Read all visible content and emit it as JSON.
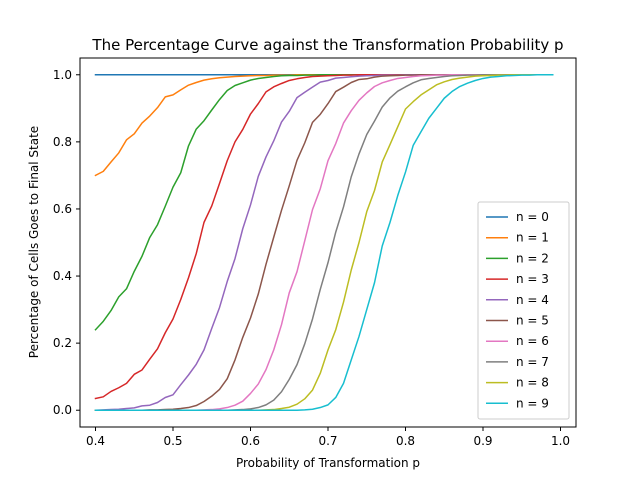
{
  "chart_data": {
    "type": "line",
    "title": "The Percentage Curve against the Transformation Probability p",
    "xlabel": "Probability of Transformation p",
    "ylabel": "Percentage of Cells Goes to Final State",
    "xlim": [
      0.38,
      1.02
    ],
    "ylim": [
      -0.05,
      1.05
    ],
    "xticks": [
      0.4,
      0.5,
      0.6,
      0.7,
      0.8,
      0.9,
      1.0
    ],
    "xtick_labels": [
      "0.4",
      "0.5",
      "0.6",
      "0.7",
      "0.8",
      "0.9",
      "1.0"
    ],
    "yticks": [
      0.0,
      0.2,
      0.4,
      0.6,
      0.8,
      1.0
    ],
    "ytick_labels": [
      "0.0",
      "0.2",
      "0.4",
      "0.6",
      "0.8",
      "1.0"
    ],
    "grid": false,
    "legend_position": "lower right",
    "x": [
      0.4,
      0.41,
      0.42,
      0.43,
      0.44,
      0.45,
      0.46,
      0.47,
      0.48,
      0.49,
      0.5,
      0.51,
      0.52,
      0.53,
      0.54,
      0.55,
      0.56,
      0.57,
      0.58,
      0.59,
      0.6,
      0.61,
      0.62,
      0.63,
      0.64,
      0.65,
      0.66,
      0.67,
      0.68,
      0.69,
      0.7,
      0.71,
      0.72,
      0.73,
      0.74,
      0.75,
      0.76,
      0.77,
      0.78,
      0.79,
      0.8,
      0.81,
      0.82,
      0.83,
      0.84,
      0.85,
      0.86,
      0.87,
      0.88,
      0.89,
      0.9,
      0.91,
      0.92,
      0.93,
      0.94,
      0.95,
      0.96,
      0.97,
      0.98,
      0.99
    ],
    "series": [
      {
        "name": "n = 0",
        "color": "#1f77b4",
        "values": [
          1.0,
          1.0,
          1.0,
          1.0,
          1.0,
          1.0,
          1.0,
          1.0,
          1.0,
          1.0,
          1.0,
          1.0,
          1.0,
          1.0,
          1.0,
          1.0,
          1.0,
          1.0,
          1.0,
          1.0,
          1.0,
          1.0,
          1.0,
          1.0,
          1.0,
          1.0,
          1.0,
          1.0,
          1.0,
          1.0,
          1.0,
          1.0,
          1.0,
          1.0,
          1.0,
          1.0,
          1.0,
          1.0,
          1.0,
          1.0,
          1.0,
          1.0,
          1.0,
          1.0,
          1.0,
          1.0,
          1.0,
          1.0,
          1.0,
          1.0,
          1.0,
          1.0,
          1.0,
          1.0,
          1.0,
          1.0,
          1.0,
          1.0,
          1.0,
          1.0
        ]
      },
      {
        "name": "n = 1",
        "color": "#ff7f0e",
        "values": [
          0.7,
          0.712,
          0.74,
          0.767,
          0.806,
          0.824,
          0.856,
          0.877,
          0.902,
          0.934,
          0.94,
          0.955,
          0.969,
          0.977,
          0.984,
          0.988,
          0.991,
          0.993,
          0.995,
          0.996,
          0.997,
          0.998,
          0.998,
          0.999,
          0.999,
          0.999,
          1.0,
          1.0,
          1.0,
          1.0,
          1.0,
          1.0,
          1.0,
          1.0,
          1.0,
          1.0,
          1.0,
          1.0,
          1.0,
          1.0,
          1.0,
          1.0,
          1.0,
          1.0,
          1.0,
          1.0,
          1.0,
          1.0,
          1.0,
          1.0,
          1.0,
          1.0,
          1.0,
          1.0,
          1.0,
          1.0,
          1.0,
          1.0,
          1.0,
          1.0
        ]
      },
      {
        "name": "n = 2",
        "color": "#2ca02c",
        "values": [
          0.24,
          0.265,
          0.297,
          0.338,
          0.362,
          0.414,
          0.459,
          0.515,
          0.553,
          0.608,
          0.665,
          0.708,
          0.788,
          0.838,
          0.863,
          0.895,
          0.926,
          0.953,
          0.968,
          0.976,
          0.984,
          0.989,
          0.992,
          0.995,
          0.997,
          0.998,
          0.998,
          0.999,
          0.999,
          1.0,
          1.0,
          1.0,
          1.0,
          1.0,
          1.0,
          1.0,
          1.0,
          1.0,
          1.0,
          1.0,
          1.0,
          1.0,
          1.0,
          1.0,
          1.0,
          1.0,
          1.0,
          1.0,
          1.0,
          1.0,
          1.0,
          1.0,
          1.0,
          1.0,
          1.0,
          1.0,
          1.0,
          1.0,
          1.0,
          1.0
        ]
      },
      {
        "name": "n = 3",
        "color": "#d62728",
        "values": [
          0.035,
          0.04,
          0.056,
          0.067,
          0.08,
          0.107,
          0.12,
          0.152,
          0.183,
          0.231,
          0.272,
          0.33,
          0.395,
          0.467,
          0.56,
          0.609,
          0.676,
          0.744,
          0.8,
          0.837,
          0.883,
          0.914,
          0.949,
          0.964,
          0.974,
          0.983,
          0.988,
          0.992,
          0.995,
          0.996,
          0.997,
          0.998,
          0.999,
          0.999,
          1.0,
          1.0,
          1.0,
          1.0,
          1.0,
          1.0,
          1.0,
          1.0,
          1.0,
          1.0,
          1.0,
          1.0,
          1.0,
          1.0,
          1.0,
          1.0,
          1.0,
          1.0,
          1.0,
          1.0,
          1.0,
          1.0,
          1.0,
          1.0,
          1.0,
          1.0
        ]
      },
      {
        "name": "n = 4",
        "color": "#9467bd",
        "values": [
          0.0,
          0.001,
          0.002,
          0.003,
          0.005,
          0.007,
          0.013,
          0.015,
          0.023,
          0.038,
          0.046,
          0.076,
          0.105,
          0.137,
          0.18,
          0.244,
          0.306,
          0.384,
          0.452,
          0.541,
          0.612,
          0.697,
          0.755,
          0.803,
          0.859,
          0.891,
          0.932,
          0.948,
          0.963,
          0.978,
          0.983,
          0.99,
          0.992,
          0.994,
          0.996,
          0.997,
          0.998,
          0.999,
          0.999,
          0.999,
          1.0,
          1.0,
          1.0,
          1.0,
          1.0,
          1.0,
          1.0,
          1.0,
          1.0,
          1.0,
          1.0,
          1.0,
          1.0,
          1.0,
          1.0,
          1.0,
          1.0,
          1.0,
          1.0,
          1.0
        ]
      },
      {
        "name": "n = 5",
        "color": "#8c564b",
        "values": [
          0.0,
          0.0,
          0.0,
          0.0,
          0.0,
          0.0,
          0.0,
          0.001,
          0.001,
          0.002,
          0.003,
          0.005,
          0.008,
          0.014,
          0.026,
          0.042,
          0.062,
          0.094,
          0.15,
          0.217,
          0.275,
          0.346,
          0.435,
          0.516,
          0.596,
          0.669,
          0.745,
          0.797,
          0.858,
          0.882,
          0.914,
          0.95,
          0.963,
          0.977,
          0.986,
          0.988,
          0.993,
          0.996,
          0.997,
          0.998,
          0.999,
          0.999,
          1.0,
          1.0,
          1.0,
          1.0,
          1.0,
          1.0,
          1.0,
          1.0,
          1.0,
          1.0,
          1.0,
          1.0,
          1.0,
          1.0,
          1.0,
          1.0,
          1.0,
          1.0
        ]
      },
      {
        "name": "n = 6",
        "color": "#e377c2",
        "values": [
          0.0,
          0.0,
          0.0,
          0.0,
          0.0,
          0.0,
          0.0,
          0.0,
          0.0,
          0.0,
          0.0,
          0.0,
          0.0,
          0.0,
          0.001,
          0.002,
          0.004,
          0.008,
          0.015,
          0.027,
          0.05,
          0.078,
          0.121,
          0.18,
          0.255,
          0.35,
          0.413,
          0.505,
          0.598,
          0.66,
          0.744,
          0.795,
          0.856,
          0.893,
          0.924,
          0.946,
          0.965,
          0.976,
          0.983,
          0.989,
          0.992,
          0.995,
          0.997,
          0.998,
          0.999,
          0.999,
          1.0,
          1.0,
          1.0,
          1.0,
          1.0,
          1.0,
          1.0,
          1.0,
          1.0,
          1.0,
          1.0,
          1.0,
          1.0,
          1.0
        ]
      },
      {
        "name": "n = 7",
        "color": "#7f7f7f",
        "values": [
          0.0,
          0.0,
          0.0,
          0.0,
          0.0,
          0.0,
          0.0,
          0.0,
          0.0,
          0.0,
          0.0,
          0.0,
          0.0,
          0.0,
          0.0,
          0.0,
          0.0,
          0.0,
          0.001,
          0.002,
          0.004,
          0.008,
          0.016,
          0.03,
          0.055,
          0.092,
          0.136,
          0.198,
          0.272,
          0.36,
          0.44,
          0.531,
          0.606,
          0.696,
          0.764,
          0.822,
          0.862,
          0.904,
          0.931,
          0.951,
          0.964,
          0.976,
          0.985,
          0.989,
          0.992,
          0.995,
          0.997,
          0.998,
          0.999,
          0.999,
          1.0,
          1.0,
          1.0,
          1.0,
          1.0,
          1.0,
          1.0,
          1.0,
          1.0,
          1.0
        ]
      },
      {
        "name": "n = 8",
        "color": "#bcbd22",
        "values": [
          0.0,
          0.0,
          0.0,
          0.0,
          0.0,
          0.0,
          0.0,
          0.0,
          0.0,
          0.0,
          0.0,
          0.0,
          0.0,
          0.0,
          0.0,
          0.0,
          0.0,
          0.0,
          0.0,
          0.0,
          0.0,
          0.0,
          0.001,
          0.002,
          0.005,
          0.009,
          0.018,
          0.034,
          0.06,
          0.11,
          0.18,
          0.24,
          0.322,
          0.418,
          0.5,
          0.592,
          0.655,
          0.74,
          0.792,
          0.845,
          0.898,
          0.92,
          0.94,
          0.955,
          0.97,
          0.979,
          0.986,
          0.99,
          0.993,
          0.996,
          0.997,
          0.998,
          0.999,
          0.999,
          1.0,
          1.0,
          1.0,
          1.0,
          1.0,
          1.0
        ]
      },
      {
        "name": "n = 9",
        "color": "#17becf",
        "values": [
          0.0,
          0.0,
          0.0,
          0.0,
          0.0,
          0.0,
          0.0,
          0.0,
          0.0,
          0.0,
          0.0,
          0.0,
          0.0,
          0.0,
          0.0,
          0.0,
          0.0,
          0.0,
          0.0,
          0.0,
          0.0,
          0.0,
          0.0,
          0.0,
          0.0,
          0.0,
          0.0,
          0.001,
          0.003,
          0.008,
          0.016,
          0.038,
          0.08,
          0.15,
          0.22,
          0.3,
          0.38,
          0.49,
          0.56,
          0.64,
          0.71,
          0.79,
          0.83,
          0.87,
          0.9,
          0.93,
          0.95,
          0.965,
          0.975,
          0.983,
          0.989,
          0.993,
          0.995,
          0.997,
          0.998,
          0.999,
          0.999,
          1.0,
          1.0,
          1.0
        ]
      }
    ]
  }
}
